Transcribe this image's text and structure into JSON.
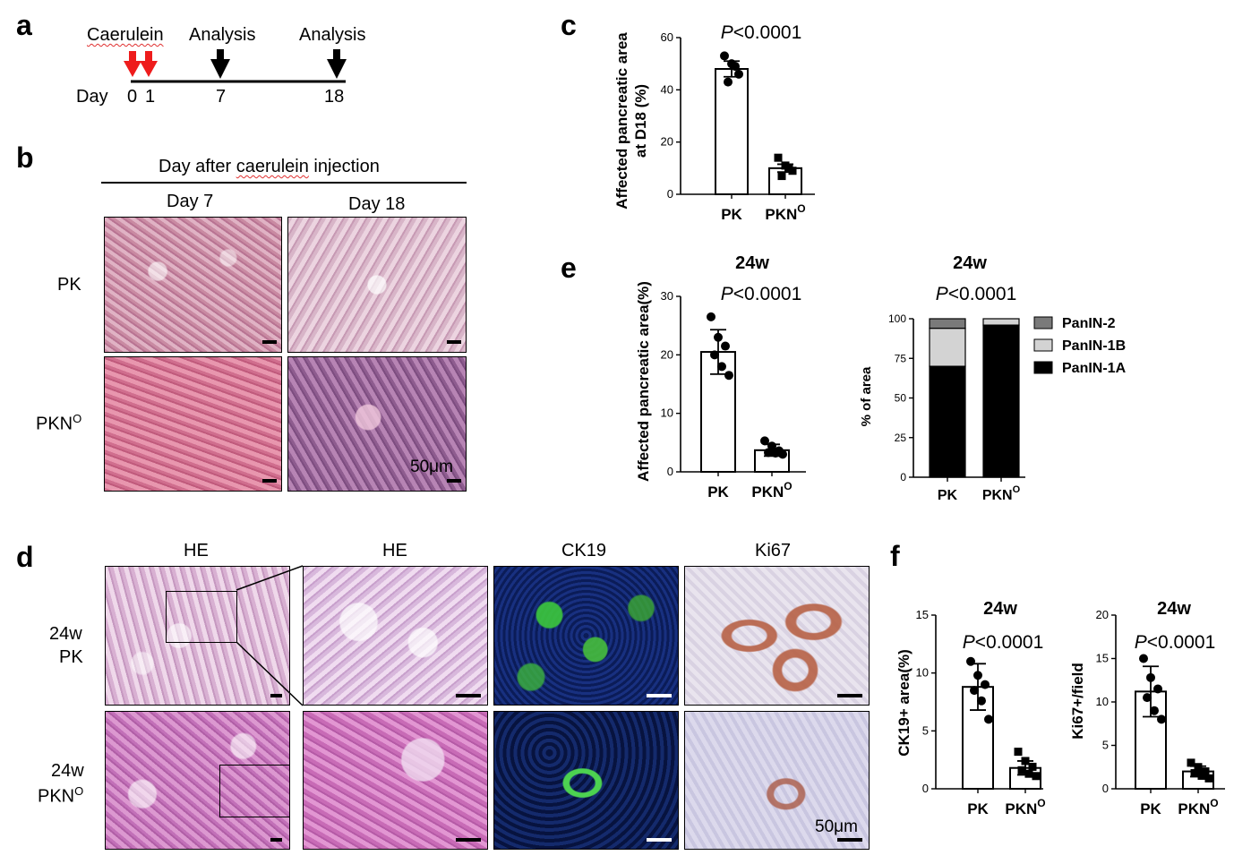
{
  "panel_labels": {
    "a": "a",
    "b": "b",
    "c": "c",
    "d": "d",
    "e": "e",
    "f": "f"
  },
  "panel_a": {
    "caerulein": "Caerulein",
    "analysis_1": "Analysis",
    "analysis_2": "Analysis",
    "day": "Day",
    "d0": "0",
    "d1": "1",
    "d7": "7",
    "d18": "18"
  },
  "panel_b": {
    "header_prefix": "Day after ",
    "header_word": "caerulein",
    "header_suffix": " injection",
    "col1": "Day 7",
    "col2": "Day 18",
    "row1": "PK",
    "row2_base": "PKN",
    "row2_sup": "O",
    "scale": "50μm"
  },
  "panel_d": {
    "col_he1": "HE",
    "col_he2": "HE",
    "col_ck19": "CK19",
    "col_ki67": "Ki67",
    "row1_l1": "24w",
    "row1_l2": "PK",
    "row2_l1": "24w",
    "row2_base": "PKN",
    "row2_sup": "O",
    "scale": "50μm"
  },
  "colors": {
    "arrow_red": "#ee1c1c",
    "panin2": "#7a7a7a",
    "panin1b": "#d3d3d3",
    "panin1a": "#000000"
  },
  "chart_data": [
    {
      "id": "c",
      "type": "bar",
      "title": "",
      "ylabel": "Affected pancreatic area at D18 (%)",
      "ylabel_l1": "Affected pancreatic area",
      "ylabel_l2": "at D18 (%)",
      "ylim": [
        0,
        60
      ],
      "yticks": [
        0,
        20,
        40,
        60
      ],
      "categories": [
        "PK",
        "PKN"
      ],
      "cat_sup": [
        "",
        "O"
      ],
      "values": [
        48,
        10
      ],
      "errors": [
        3,
        1.5
      ],
      "points": [
        [
          53,
          50,
          46,
          43,
          49
        ],
        [
          14,
          11,
          9,
          7,
          10
        ]
      ],
      "marker": [
        "circle",
        "square"
      ],
      "pvalue_p": "P",
      "pvalue_rest": "<0.0001"
    },
    {
      "id": "e_left",
      "type": "bar",
      "title": "24w",
      "ylabel": "Affected pancreatic area(%)",
      "ylim": [
        0,
        30
      ],
      "yticks": [
        0,
        10,
        20,
        30
      ],
      "categories": [
        "PK",
        "PKN"
      ],
      "cat_sup": [
        "",
        "O"
      ],
      "values": [
        20.5,
        3.7
      ],
      "errors": [
        3.8,
        1.0
      ],
      "points": [
        [
          26.5,
          23,
          21.5,
          20,
          18,
          16.5
        ],
        [
          5.3,
          4.4,
          3.6,
          3.3,
          3.2,
          3.0
        ]
      ],
      "marker": [
        "circle",
        "circle"
      ],
      "pvalue_p": "P",
      "pvalue_rest": "<0.0001"
    },
    {
      "id": "e_right",
      "type": "bar",
      "stacked": true,
      "title": "24w",
      "ylabel": "% of area",
      "ylim": [
        0,
        100
      ],
      "yticks": [
        0,
        25,
        50,
        75,
        100
      ],
      "categories": [
        "PK",
        "PKN"
      ],
      "cat_sup": [
        "",
        "O"
      ],
      "series": [
        {
          "name": "PanIN-1A",
          "values": [
            70,
            96
          ]
        },
        {
          "name": "PanIN-1B",
          "values": [
            24,
            4
          ]
        },
        {
          "name": "PanIN-2",
          "values": [
            6,
            0
          ]
        }
      ],
      "legend_order": [
        "PanIN-2",
        "PanIN-1B",
        "PanIN-1A"
      ],
      "legend": "top-right",
      "pvalue_p": "P",
      "pvalue_rest": "<0.0001"
    },
    {
      "id": "f_left",
      "type": "bar",
      "title": "24w",
      "ylabel": "CK19+ area(%)",
      "ylim": [
        0,
        15
      ],
      "yticks": [
        0,
        5,
        10,
        15
      ],
      "categories": [
        "PK",
        "PKN"
      ],
      "cat_sup": [
        "",
        "O"
      ],
      "values": [
        8.8,
        1.8
      ],
      "errors": [
        2.0,
        0.6
      ],
      "points": [
        [
          11,
          9.8,
          9,
          8.5,
          7.6,
          6
        ],
        [
          3.2,
          2.4,
          1.9,
          1.6,
          1.3,
          1.1
        ]
      ],
      "marker": [
        "circle",
        "square"
      ],
      "pvalue_p": "P",
      "pvalue_rest": "<0.0001"
    },
    {
      "id": "f_right",
      "type": "bar",
      "title": "24w",
      "ylabel": "Ki67+/field",
      "ylim": [
        0,
        20
      ],
      "yticks": [
        0,
        5,
        10,
        15,
        20
      ],
      "categories": [
        "PK",
        "PKN"
      ],
      "cat_sup": [
        "",
        "O"
      ],
      "values": [
        11.2,
        2.0
      ],
      "errors": [
        2.9,
        0.6
      ],
      "points": [
        [
          15,
          12.8,
          11.5,
          10.5,
          9,
          8
        ],
        [
          3.0,
          2.5,
          2.0,
          1.8,
          1.5,
          1.2
        ]
      ],
      "marker": [
        "circle",
        "square"
      ],
      "pvalue_p": "P",
      "pvalue_rest": "<0.0001"
    }
  ]
}
